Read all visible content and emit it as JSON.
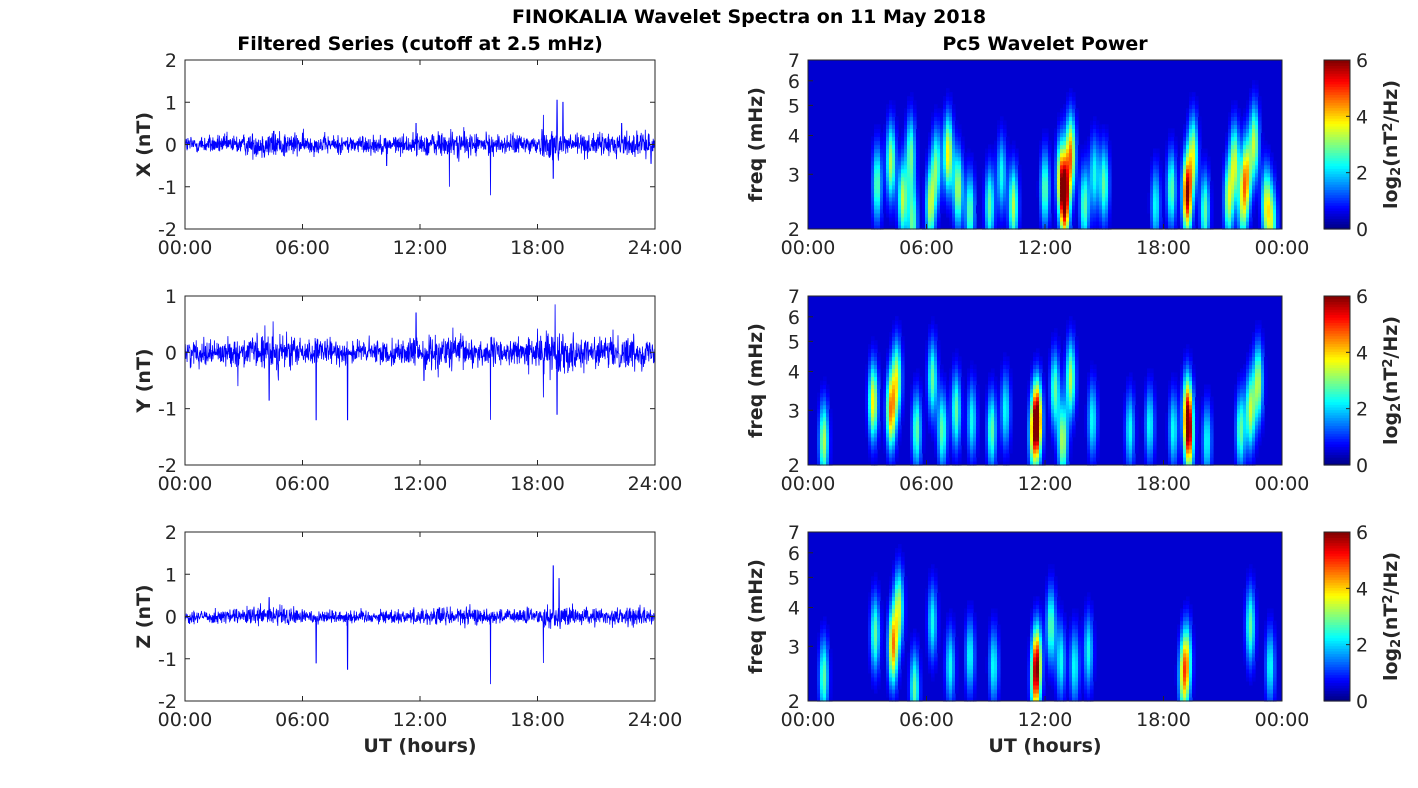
{
  "figure_title": "FINOKALIA Wavelet Spectra on 11 May 2018",
  "left_title": "Filtered Series (cutoff at 2.5 mHz)",
  "right_title": "Pc5 Wavelet Power",
  "xlabel": "UT (hours)",
  "freq_ylabel": "freq (mHz)",
  "colorbar_label": "log",
  "colorbar_label_sub": "2",
  "colorbar_label_rest": "(nT",
  "colorbar_label_sup": "2",
  "colorbar_label_end": "/Hz)",
  "colors": {
    "trace": "#0000ff",
    "axis": "#262626",
    "background": "#ffffff"
  },
  "chart_data": [
    {
      "type": "line",
      "ylabel": "X (nT)",
      "xlim": [
        0,
        24
      ],
      "ylim": [
        -2,
        2
      ],
      "x_ticks": [
        "00:00",
        "06:00",
        "12:00",
        "18:00",
        "24:00"
      ],
      "y_ticks": [
        "-2",
        "-1",
        "0",
        "1",
        "2"
      ],
      "noise_amplitude": 0.2,
      "spikes": [
        [
          13.5,
          -1.0
        ],
        [
          15.6,
          -1.2
        ],
        [
          18.3,
          0.7
        ],
        [
          18.8,
          -0.8
        ],
        [
          19.0,
          1.05
        ],
        [
          19.3,
          1.0
        ],
        [
          10.3,
          -0.5
        ],
        [
          11.8,
          0.5
        ],
        [
          22.3,
          0.5
        ],
        [
          23.8,
          -0.45
        ]
      ]
    },
    {
      "type": "line",
      "ylabel": "Y (nT)",
      "xlim": [
        0,
        24
      ],
      "ylim": [
        -2,
        1
      ],
      "x_ticks": [
        "00:00",
        "06:00",
        "12:00",
        "18:00",
        "24:00"
      ],
      "y_ticks": [
        "-2",
        "-1",
        "0",
        "1"
      ],
      "noise_amplitude": 0.2,
      "spikes": [
        [
          4.3,
          -0.85
        ],
        [
          6.7,
          -1.2
        ],
        [
          8.3,
          -1.2
        ],
        [
          11.8,
          0.7
        ],
        [
          15.6,
          -1.2
        ],
        [
          18.3,
          -0.8
        ],
        [
          18.9,
          0.85
        ],
        [
          19.0,
          -1.1
        ],
        [
          4.5,
          0.55
        ],
        [
          2.7,
          -0.6
        ],
        [
          12.2,
          -0.5
        ]
      ]
    },
    {
      "type": "line",
      "ylabel": "Z (nT)",
      "xlim": [
        0,
        24
      ],
      "ylim": [
        -2,
        2
      ],
      "x_ticks": [
        "00:00",
        "06:00",
        "12:00",
        "18:00",
        "24:00"
      ],
      "y_ticks": [
        "-2",
        "-1",
        "0",
        "1",
        "2"
      ],
      "noise_amplitude": 0.15,
      "spikes": [
        [
          6.7,
          -1.1
        ],
        [
          8.3,
          -1.25
        ],
        [
          15.6,
          -1.6
        ],
        [
          18.3,
          -1.1
        ],
        [
          18.8,
          1.2
        ],
        [
          19.1,
          0.9
        ],
        [
          4.3,
          0.45
        ]
      ]
    },
    {
      "type": "heatmap",
      "ylabel": "freq (mHz)",
      "xlim": [
        0,
        24
      ],
      "ylim": [
        2,
        7
      ],
      "y_scale": "log",
      "clim": [
        0,
        6
      ],
      "colormap": "jet",
      "x_ticks": [
        "00:00",
        "06:00",
        "12:00",
        "18:00",
        "00:00"
      ],
      "y_ticks": [
        "2",
        "3",
        "4",
        "5",
        "6",
        "7"
      ],
      "colorbar_ticks": [
        "0",
        "2",
        "4",
        "6"
      ],
      "blobs": [
        [
          3.5,
          2.8,
          2.5
        ],
        [
          4.2,
          3.3,
          3
        ],
        [
          4.8,
          2.5,
          3
        ],
        [
          5.2,
          3.5,
          2.5
        ],
        [
          5.3,
          2.1,
          2.5
        ],
        [
          6.2,
          2.4,
          3
        ],
        [
          6.5,
          3.2,
          2.5
        ],
        [
          7.1,
          3.5,
          3.5
        ],
        [
          7.6,
          2.7,
          3
        ],
        [
          8.2,
          2.3,
          2.5
        ],
        [
          9.2,
          2.4,
          2.5
        ],
        [
          9.8,
          3.0,
          2
        ],
        [
          10.4,
          2.4,
          3
        ],
        [
          12.0,
          2.7,
          2.5
        ],
        [
          12.8,
          3.0,
          3
        ],
        [
          13.0,
          2.5,
          5.8
        ],
        [
          13.3,
          3.5,
          4
        ],
        [
          14.0,
          2.4,
          2.5
        ],
        [
          14.5,
          3.0,
          2
        ],
        [
          15.0,
          2.8,
          2.5
        ],
        [
          17.6,
          2.4,
          2
        ],
        [
          18.4,
          2.7,
          2.5
        ],
        [
          19.2,
          2.6,
          5.5
        ],
        [
          19.5,
          3.5,
          3
        ],
        [
          20.1,
          2.3,
          2.5
        ],
        [
          21.3,
          2.5,
          3
        ],
        [
          21.6,
          3.3,
          3
        ],
        [
          22.0,
          2.4,
          2.5
        ],
        [
          22.2,
          3.0,
          3.5
        ],
        [
          22.6,
          3.8,
          3
        ],
        [
          23.2,
          2.4,
          3
        ],
        [
          23.5,
          2.1,
          2.5
        ]
      ]
    },
    {
      "type": "heatmap",
      "ylabel": "freq (mHz)",
      "xlim": [
        0,
        24
      ],
      "ylim": [
        2,
        7
      ],
      "y_scale": "log",
      "clim": [
        0,
        6
      ],
      "colormap": "jet",
      "x_ticks": [
        "00:00",
        "06:00",
        "12:00",
        "18:00",
        "00:00"
      ],
      "y_ticks": [
        "2",
        "3",
        "4",
        "5",
        "6",
        "7"
      ],
      "colorbar_ticks": [
        "0",
        "2",
        "4",
        "6"
      ],
      "blobs": [
        [
          0.8,
          2.4,
          3
        ],
        [
          3.3,
          3.2,
          3.5
        ],
        [
          4.2,
          3.0,
          4
        ],
        [
          4.5,
          3.8,
          3
        ],
        [
          5.5,
          2.6,
          2.5
        ],
        [
          6.3,
          3.8,
          2.5
        ],
        [
          6.8,
          2.6,
          2.5
        ],
        [
          7.5,
          3.0,
          2.5
        ],
        [
          8.3,
          2.8,
          2
        ],
        [
          9.3,
          2.6,
          2.5
        ],
        [
          10.0,
          3.0,
          2
        ],
        [
          11.4,
          2.5,
          2.5
        ],
        [
          11.6,
          2.8,
          5.8
        ],
        [
          12.5,
          3.5,
          2.5
        ],
        [
          12.9,
          2.4,
          3
        ],
        [
          13.3,
          3.8,
          3
        ],
        [
          14.4,
          2.8,
          2
        ],
        [
          16.3,
          2.6,
          2
        ],
        [
          17.3,
          2.7,
          2
        ],
        [
          18.5,
          2.6,
          2
        ],
        [
          19.2,
          3.0,
          3.5
        ],
        [
          19.3,
          2.5,
          4
        ],
        [
          20.2,
          2.4,
          2
        ],
        [
          21.9,
          2.6,
          2.5
        ],
        [
          22.4,
          3.0,
          3
        ],
        [
          22.8,
          3.7,
          3
        ]
      ]
    },
    {
      "type": "heatmap",
      "ylabel": "freq (mHz)",
      "xlim": [
        0,
        24
      ],
      "ylim": [
        2,
        7
      ],
      "y_scale": "log",
      "clim": [
        0,
        6
      ],
      "colormap": "jet",
      "x_ticks": [
        "00:00",
        "06:00",
        "12:00",
        "18:00",
        "00:00"
      ],
      "y_ticks": [
        "2",
        "3",
        "4",
        "5",
        "6",
        "7"
      ],
      "colorbar_ticks": [
        "0",
        "2",
        "4",
        "6"
      ],
      "blobs": [
        [
          0.8,
          2.4,
          2.5
        ],
        [
          3.4,
          3.3,
          2.5
        ],
        [
          4.3,
          3.0,
          4
        ],
        [
          4.6,
          4.0,
          3
        ],
        [
          5.4,
          2.2,
          2.5
        ],
        [
          6.3,
          3.6,
          2
        ],
        [
          7.2,
          2.6,
          2
        ],
        [
          8.2,
          2.8,
          2
        ],
        [
          9.4,
          2.6,
          2
        ],
        [
          11.5,
          2.3,
          3
        ],
        [
          11.6,
          2.7,
          3.8
        ],
        [
          12.3,
          3.5,
          2.5
        ],
        [
          12.8,
          2.7,
          2
        ],
        [
          13.5,
          2.6,
          2
        ],
        [
          14.2,
          2.9,
          2
        ],
        [
          19.0,
          2.4,
          3
        ],
        [
          19.2,
          2.7,
          2.8
        ],
        [
          22.4,
          3.5,
          2.5
        ],
        [
          23.4,
          2.6,
          2
        ]
      ]
    }
  ]
}
